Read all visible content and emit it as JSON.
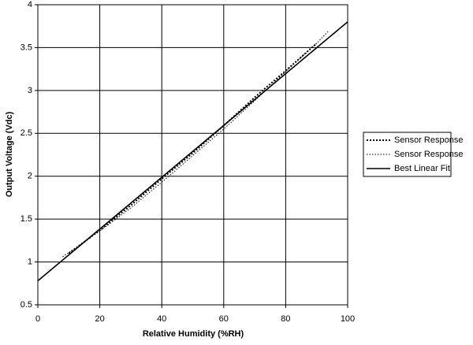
{
  "chart_data": {
    "type": "line",
    "x_label": "Relative Humidity (%RH)",
    "y_label": "Output Voltage (Vdc)",
    "xlim": [
      0,
      100
    ],
    "xticks": [
      0,
      20,
      40,
      60,
      80,
      100
    ],
    "ylim": [
      0.5,
      4
    ],
    "yticks": [
      0.5,
      1,
      1.5,
      2,
      2.5,
      3,
      3.5,
      4
    ],
    "grid": true,
    "legend": "right",
    "series": [
      {
        "name": "Sensor Response",
        "color": "#000000",
        "style": "dotted",
        "x": [
          10,
          20,
          30,
          40,
          50,
          60,
          70,
          80,
          90
        ],
        "values": [
          1.1,
          1.37,
          1.66,
          1.97,
          2.27,
          2.59,
          2.92,
          3.23,
          3.55
        ]
      },
      {
        "name": "Sensor Response",
        "color": "#000000",
        "style": "fine-dotted",
        "x": [
          8,
          20,
          30,
          40,
          50,
          60,
          70,
          80,
          90,
          94
        ],
        "values": [
          1.06,
          1.36,
          1.63,
          1.93,
          2.24,
          2.55,
          2.88,
          3.22,
          3.55,
          3.7
        ]
      },
      {
        "name": "Best Linear Fit",
        "color": "#000000",
        "style": "solid",
        "x": [
          0,
          100
        ],
        "values": [
          0.78,
          3.8
        ]
      }
    ]
  }
}
